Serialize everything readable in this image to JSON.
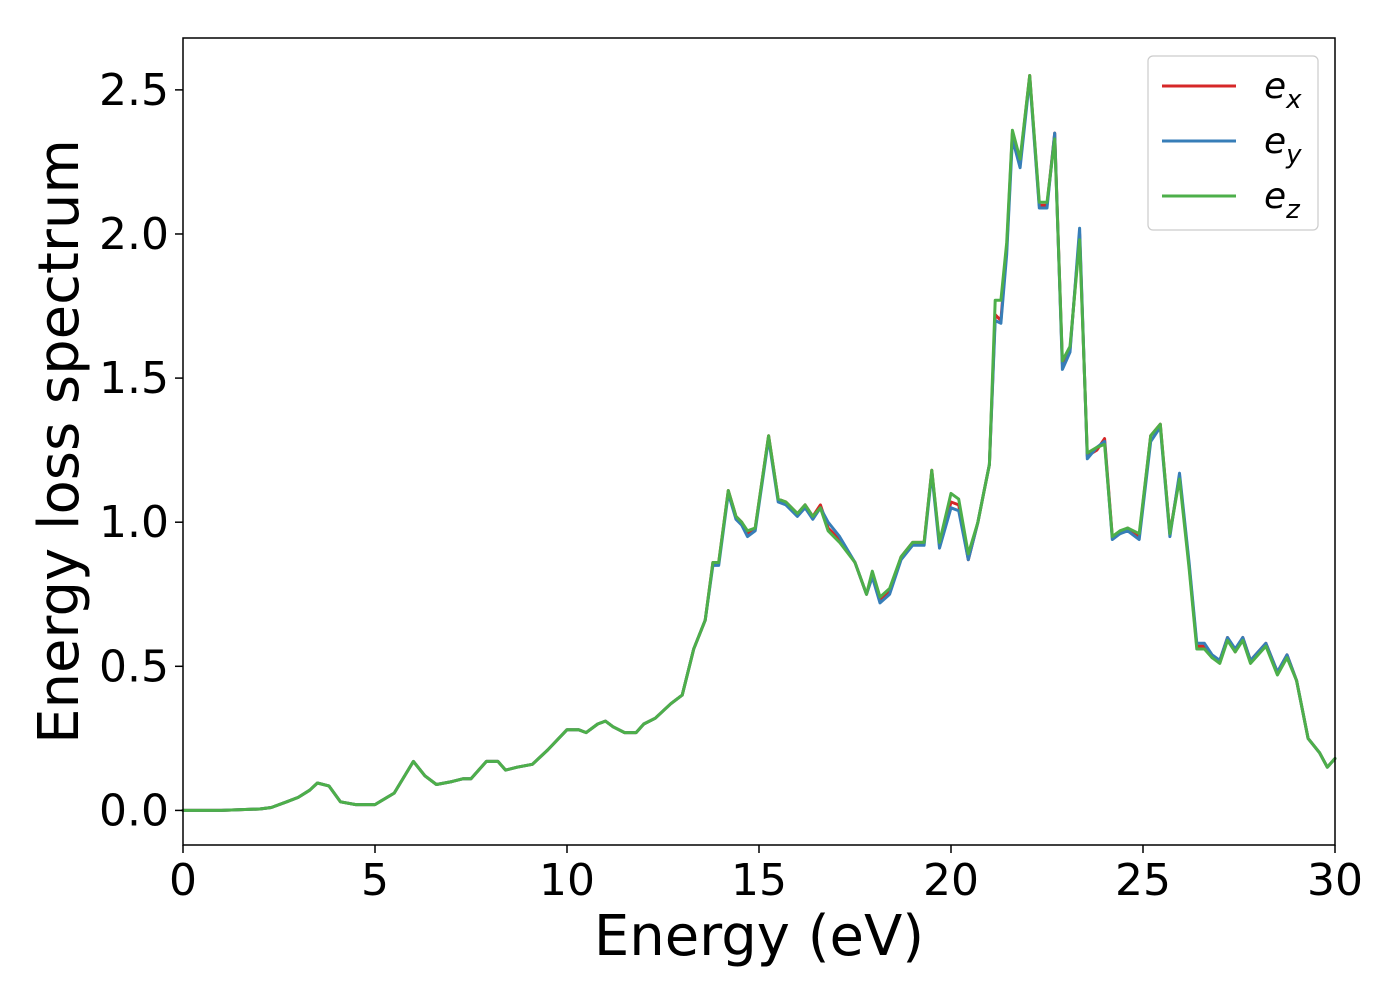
{
  "chart_data": {
    "type": "line",
    "title": "",
    "xlabel": "Energy (eV)",
    "ylabel": "Energy loss spectrum",
    "xlim": [
      0,
      30
    ],
    "ylim": [
      -0.12,
      2.68
    ],
    "xticks": [
      0,
      5,
      10,
      15,
      20,
      25,
      30
    ],
    "xtick_labels": [
      "0",
      "5",
      "10",
      "15",
      "20",
      "25",
      "30"
    ],
    "yticks": [
      0.0,
      0.5,
      1.0,
      1.5,
      2.0,
      2.5
    ],
    "ytick_labels": [
      "0.0",
      "0.5",
      "1.0",
      "1.5",
      "2.0",
      "2.5"
    ],
    "grid": false,
    "legend_position": "top-right",
    "x": [
      0,
      1,
      2,
      2.3,
      2.7,
      3,
      3.3,
      3.5,
      3.8,
      4.1,
      4.5,
      5,
      5.5,
      6,
      6.3,
      6.6,
      7,
      7.3,
      7.5,
      7.9,
      8.2,
      8.4,
      8.7,
      9.1,
      9.5,
      10,
      10.3,
      10.5,
      10.8,
      11,
      11.2,
      11.5,
      11.8,
      12,
      12.3,
      12.7,
      13,
      13.3,
      13.6,
      13.8,
      13.95,
      14.2,
      14.4,
      14.55,
      14.7,
      14.9,
      15.25,
      15.5,
      15.7,
      16,
      16.2,
      16.4,
      16.6,
      16.8,
      17.1,
      17.5,
      17.8,
      17.95,
      18.15,
      18.4,
      18.7,
      19,
      19.3,
      19.5,
      19.7,
      20,
      20.2,
      20.45,
      20.7,
      20.85,
      21,
      21.15,
      21.3,
      21.45,
      21.6,
      21.8,
      22.05,
      22.3,
      22.5,
      22.7,
      22.9,
      23.1,
      23.35,
      23.55,
      23.8,
      24,
      24.2,
      24.4,
      24.6,
      24.9,
      25.2,
      25.45,
      25.7,
      25.95,
      26.2,
      26.4,
      26.6,
      26.8,
      27,
      27.2,
      27.4,
      27.6,
      27.8,
      28,
      28.2,
      28.5,
      28.75,
      29,
      29.3,
      29.6,
      29.8,
      30
    ],
    "series": [
      {
        "name": "e_x",
        "sub": "x",
        "color": "#d62728",
        "values": [
          0,
          0,
          0.005,
          0.01,
          0.03,
          0.045,
          0.07,
          0.095,
          0.085,
          0.03,
          0.02,
          0.02,
          0.06,
          0.17,
          0.12,
          0.09,
          0.1,
          0.11,
          0.11,
          0.17,
          0.17,
          0.14,
          0.15,
          0.16,
          0.21,
          0.28,
          0.28,
          0.27,
          0.3,
          0.31,
          0.29,
          0.27,
          0.27,
          0.3,
          0.32,
          0.37,
          0.4,
          0.56,
          0.66,
          0.86,
          0.86,
          1.11,
          1.02,
          1.0,
          0.96,
          0.98,
          1.3,
          1.08,
          1.07,
          1.03,
          1.06,
          1.02,
          1.06,
          0.98,
          0.94,
          0.86,
          0.75,
          0.82,
          0.73,
          0.76,
          0.88,
          0.93,
          0.93,
          1.18,
          0.92,
          1.07,
          1.06,
          0.87,
          1.0,
          1.1,
          1.2,
          1.72,
          1.7,
          1.95,
          2.35,
          2.25,
          2.55,
          2.1,
          2.1,
          2.35,
          1.55,
          1.6,
          2.0,
          1.23,
          1.25,
          1.29,
          0.95,
          0.96,
          0.98,
          0.95,
          1.3,
          1.34,
          0.96,
          1.16,
          0.85,
          0.57,
          0.57,
          0.53,
          0.52,
          0.6,
          0.55,
          0.6,
          0.52,
          0.55,
          0.58,
          0.48,
          0.54,
          0.45,
          0.25,
          0.2,
          0.15,
          0.18
        ]
      },
      {
        "name": "e_y",
        "sub": "y",
        "color": "#377eb8",
        "values": [
          0,
          0,
          0.005,
          0.01,
          0.03,
          0.045,
          0.07,
          0.095,
          0.085,
          0.03,
          0.02,
          0.02,
          0.06,
          0.17,
          0.12,
          0.09,
          0.1,
          0.11,
          0.11,
          0.17,
          0.17,
          0.14,
          0.15,
          0.16,
          0.21,
          0.28,
          0.28,
          0.27,
          0.3,
          0.31,
          0.29,
          0.27,
          0.27,
          0.3,
          0.32,
          0.37,
          0.4,
          0.56,
          0.66,
          0.85,
          0.85,
          1.1,
          1.01,
          0.99,
          0.95,
          0.97,
          1.29,
          1.07,
          1.06,
          1.02,
          1.05,
          1.01,
          1.05,
          1.0,
          0.95,
          0.86,
          0.75,
          0.81,
          0.72,
          0.75,
          0.87,
          0.92,
          0.92,
          1.17,
          0.91,
          1.05,
          1.04,
          0.87,
          1.0,
          1.1,
          1.2,
          1.7,
          1.69,
          1.93,
          2.33,
          2.23,
          2.54,
          2.09,
          2.09,
          2.35,
          1.53,
          1.59,
          2.02,
          1.22,
          1.26,
          1.28,
          0.94,
          0.96,
          0.97,
          0.94,
          1.28,
          1.33,
          0.95,
          1.17,
          0.86,
          0.58,
          0.58,
          0.54,
          0.52,
          0.6,
          0.56,
          0.6,
          0.52,
          0.55,
          0.58,
          0.48,
          0.54,
          0.45,
          0.25,
          0.2,
          0.15,
          0.18
        ]
      },
      {
        "name": "e_z",
        "sub": "z",
        "color": "#4daf4a",
        "values": [
          0,
          0,
          0.005,
          0.01,
          0.03,
          0.045,
          0.07,
          0.095,
          0.085,
          0.03,
          0.02,
          0.02,
          0.06,
          0.17,
          0.12,
          0.09,
          0.1,
          0.11,
          0.11,
          0.17,
          0.17,
          0.14,
          0.15,
          0.16,
          0.21,
          0.28,
          0.28,
          0.27,
          0.3,
          0.31,
          0.29,
          0.27,
          0.27,
          0.3,
          0.32,
          0.37,
          0.4,
          0.56,
          0.66,
          0.86,
          0.86,
          1.11,
          1.02,
          1.0,
          0.97,
          0.98,
          1.3,
          1.08,
          1.07,
          1.03,
          1.06,
          1.02,
          1.05,
          0.97,
          0.93,
          0.86,
          0.75,
          0.83,
          0.74,
          0.77,
          0.88,
          0.93,
          0.93,
          1.18,
          0.93,
          1.1,
          1.08,
          0.89,
          1.0,
          1.1,
          1.2,
          1.77,
          1.77,
          1.97,
          2.36,
          2.26,
          2.55,
          2.11,
          2.11,
          2.33,
          1.56,
          1.61,
          1.98,
          1.24,
          1.26,
          1.27,
          0.95,
          0.97,
          0.98,
          0.96,
          1.3,
          1.34,
          0.96,
          1.15,
          0.84,
          0.56,
          0.56,
          0.53,
          0.51,
          0.59,
          0.55,
          0.59,
          0.51,
          0.54,
          0.57,
          0.47,
          0.53,
          0.45,
          0.25,
          0.2,
          0.15,
          0.18
        ]
      }
    ]
  }
}
